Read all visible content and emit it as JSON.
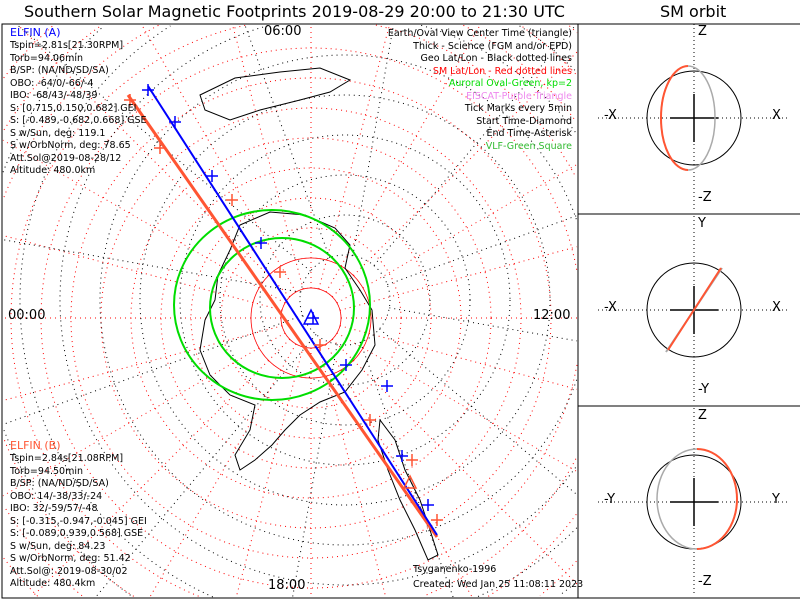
{
  "title": "Southern Solar Magnetic Footprints 2019-08-29 20:00 to 21:30 UTC",
  "orbit_title": "SM orbit",
  "colors": {
    "elfin_a": "#0000ff",
    "elfin_b": "#ff5533",
    "sm_grid": "#ff0000",
    "geo_grid": "#000000",
    "oval": "#00dd00",
    "eiscat": "#ee88ee",
    "vlf": "#33bb33",
    "other_orbit": "#aaaaaa"
  },
  "map_labels": {
    "top": "06:00",
    "left": "00:00",
    "right": "12:00",
    "bottom": "18:00"
  },
  "elfin_a": {
    "name": "ELFIN (A)",
    "lines": [
      "Tspin=2.81s[21.30RPM]",
      "Torb=94.06min",
      "B/SP: (NA/ND/SD/SA)",
      "OBO: -64/0/-66/-4",
      "IBO: -68/43/-48/39",
      "S: [0.715,0.150,0.682] GEI",
      "S: [-0.489,-0.682,0.668] GSE",
      "S w/Sun, deg: 119.1",
      "S w/OrbNorm, deg: 78.65",
      "Att.Sol@2019-08-28/12",
      "Altitude: 480.0km"
    ]
  },
  "elfin_b": {
    "name": "ELFIN (B)",
    "lines": [
      "Tspin=2.84s[21.08RPM]",
      "Torb=94.50min",
      "B/SP: (NA/ND/SD/SA)",
      "OBO: 14/-38/33/-24",
      "IBO: 32/-59/57/-48",
      "S: [-0.315,-0.947,-0.045] GEI",
      "S: [-0.089,0.939,0.568] GSE",
      "S w/Sun, deg: 84.23",
      "S w/OrbNorm, deg: 51.42",
      "Att.Sol@: 2019-08-30/02",
      "Altitude: 480.4km"
    ]
  },
  "legend": [
    {
      "text": "Earth/Oval View Center Time (triangle)",
      "color": "#000000"
    },
    {
      "text": "Thick - Science (FGM and/or EPD)",
      "color": "#000000"
    },
    {
      "text": "Geo Lat/Lon - Black dotted lines",
      "color": "#000000"
    },
    {
      "text": "SM Lat/Lon - Red dotted lines",
      "color": "#ff0000"
    },
    {
      "text": "Auroral Oval-Green, kp=2",
      "color": "#00dd00"
    },
    {
      "text": "EISCAT-Purple Triangle",
      "color": "#ee88ee"
    },
    {
      "text": "Tick Marks every 5min",
      "color": "#000000"
    },
    {
      "text": "Start Time-Diamond",
      "color": "#000000"
    },
    {
      "text": "End Time-Asterisk",
      "color": "#000000"
    },
    {
      "text": "VLF-Green Square",
      "color": "#33bb33"
    }
  ],
  "footer": {
    "model": "Tsyganenko-1996",
    "created": "Created: Wed Jan 25 11:08:11 2023"
  },
  "orbit_panels": [
    {
      "top": "Z",
      "bottom": "-Z",
      "left": "-X",
      "right": "X"
    },
    {
      "top": "Y",
      "bottom": "-Y",
      "left": "-X",
      "right": "X"
    },
    {
      "top": "Z",
      "bottom": "-Z",
      "left": "-Y",
      "right": "Y"
    }
  ]
}
